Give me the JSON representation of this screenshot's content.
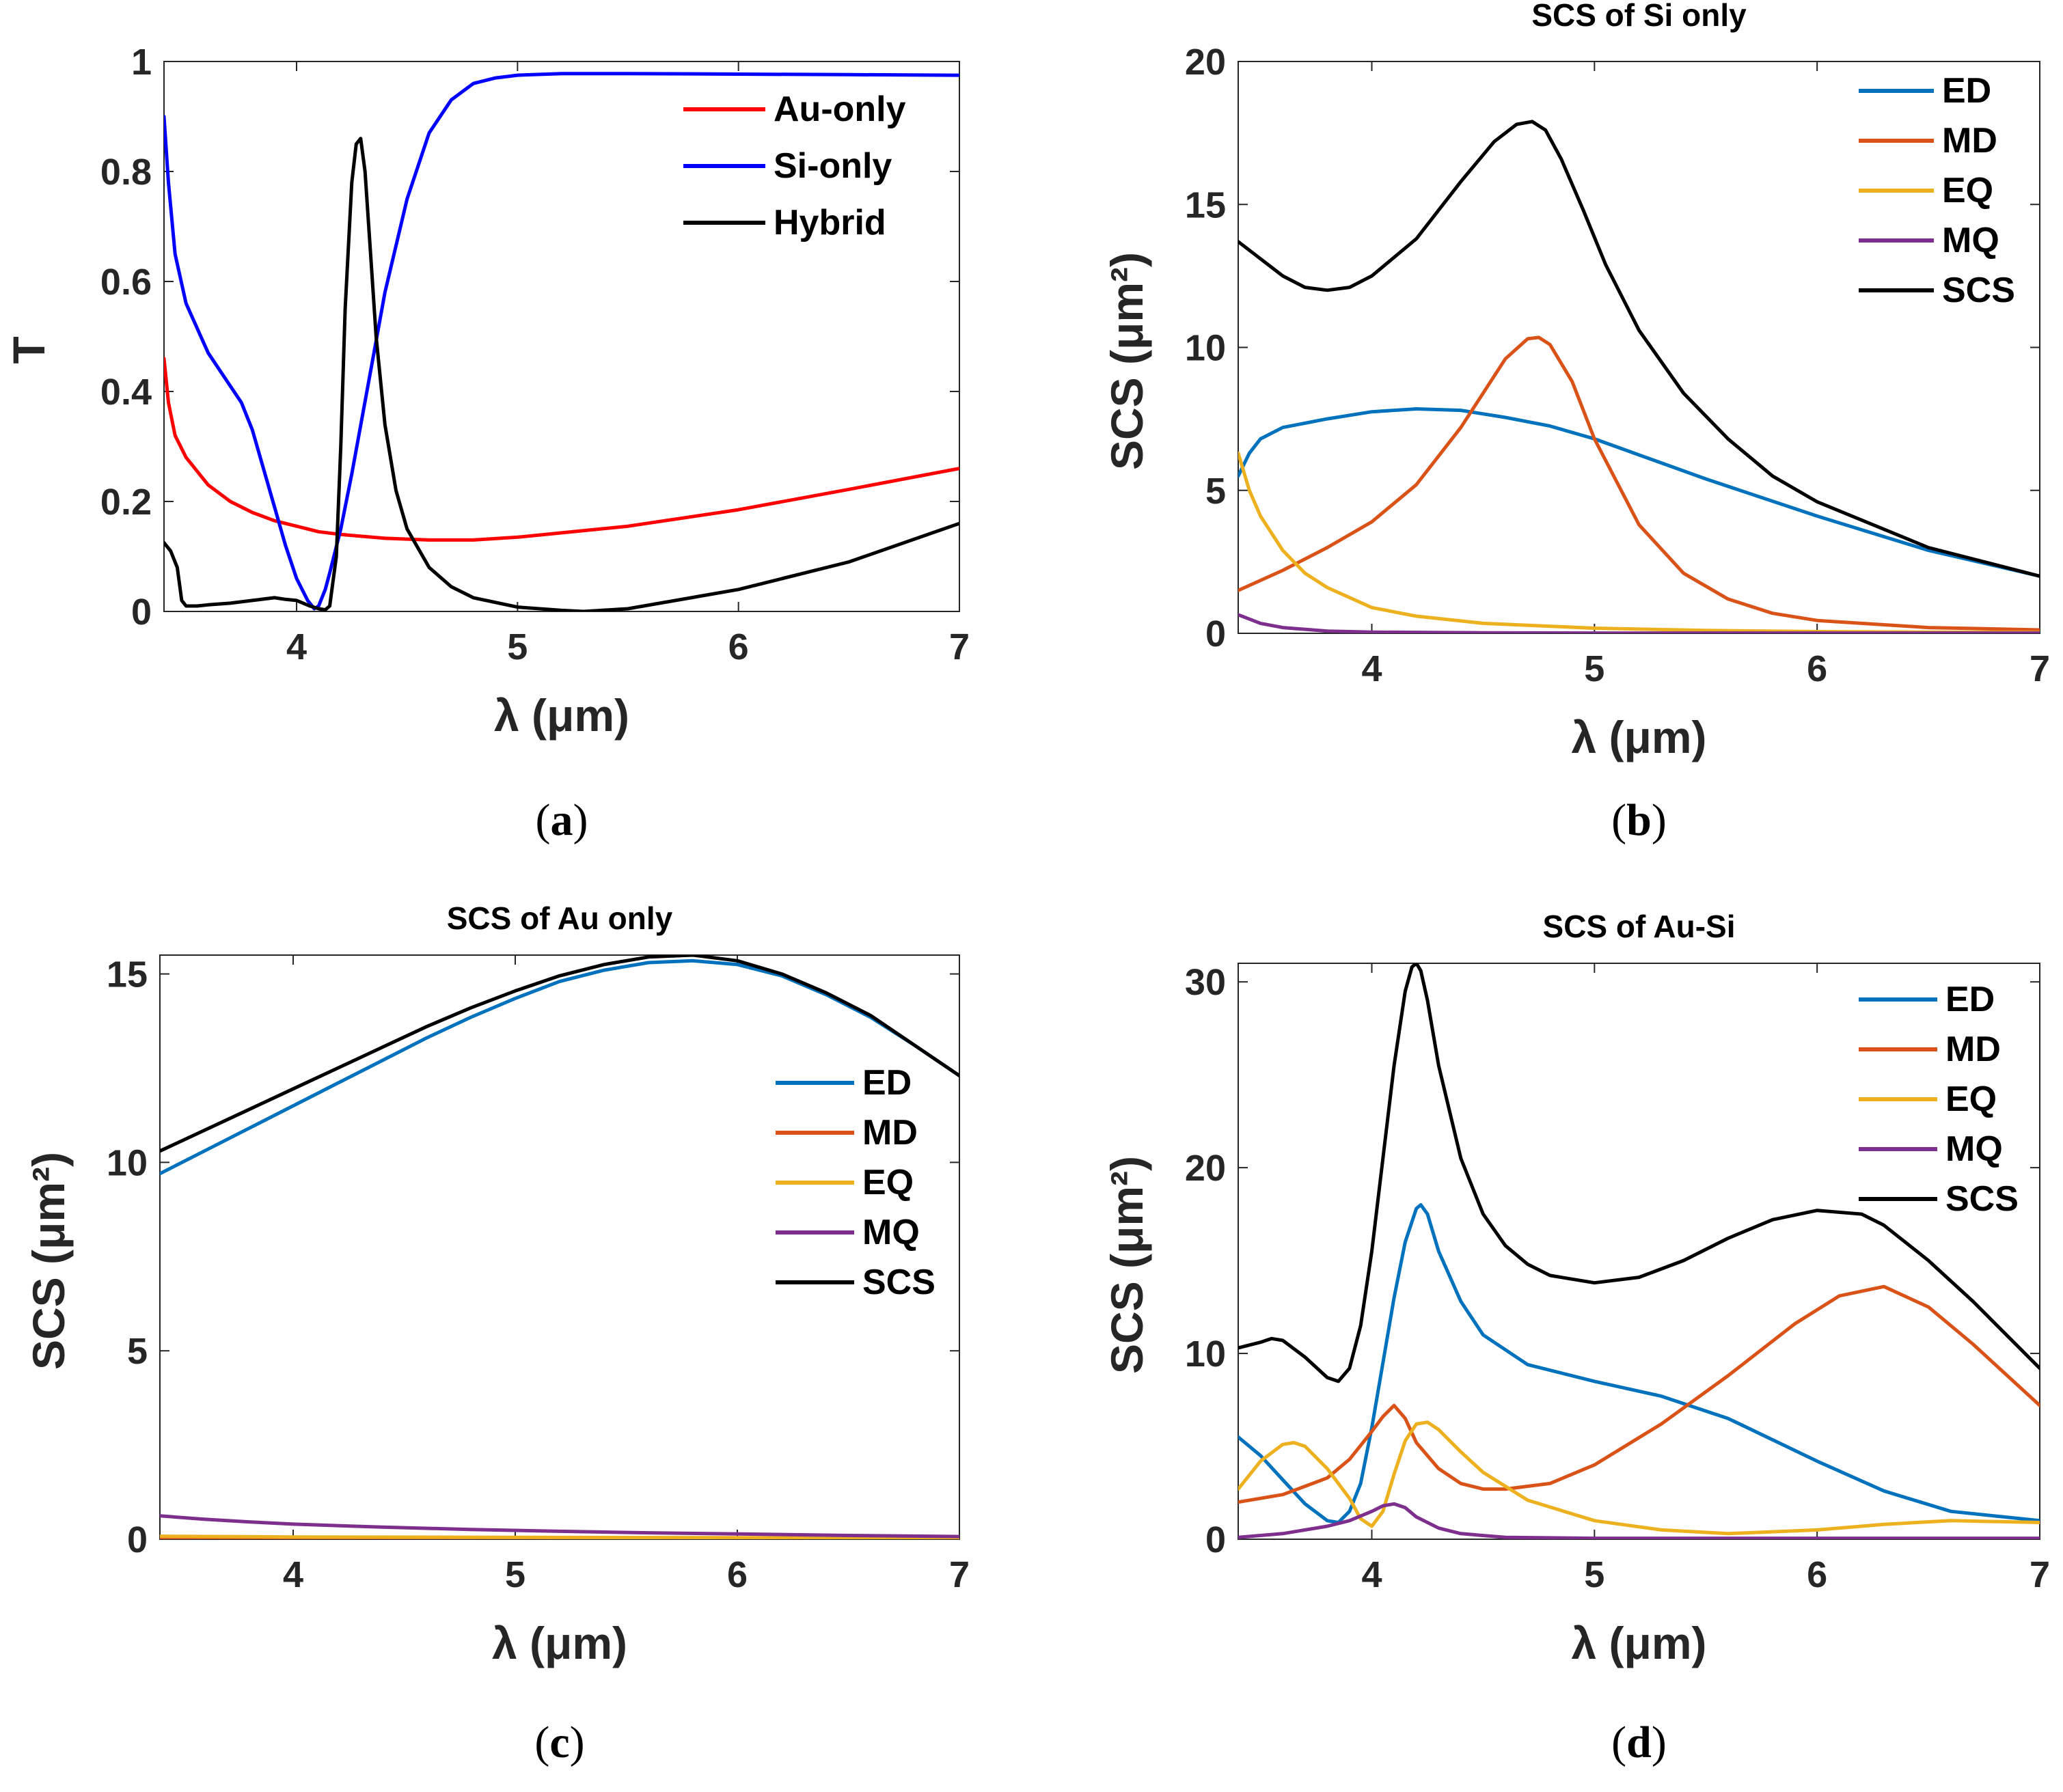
{
  "chart_data": [
    {
      "id": "a",
      "type": "line",
      "caption_label": "a",
      "title": "",
      "xlabel": "λ (μm)",
      "ylabel": "T",
      "xlim": [
        3.4,
        7
      ],
      "ylim": [
        0,
        1
      ],
      "xticks": [
        "4",
        "5",
        "6",
        "7"
      ],
      "xtick_values": [
        4,
        5,
        6,
        7
      ],
      "yticks": [
        "0",
        "0.2",
        "0.4",
        "0.6",
        "0.8",
        "1"
      ],
      "ytick_values": [
        0,
        0.2,
        0.4,
        0.6,
        0.8,
        1
      ],
      "legend_position": "top-right",
      "series": [
        {
          "name": "Au-only",
          "color": "#ff0000",
          "x": [
            3.4,
            3.42,
            3.45,
            3.5,
            3.6,
            3.7,
            3.8,
            3.9,
            4.0,
            4.1,
            4.2,
            4.4,
            4.6,
            4.8,
            5.0,
            5.2,
            5.5,
            6.0,
            6.5,
            7.0
          ],
          "y": [
            0.46,
            0.38,
            0.32,
            0.28,
            0.23,
            0.2,
            0.18,
            0.165,
            0.155,
            0.145,
            0.14,
            0.133,
            0.13,
            0.13,
            0.135,
            0.143,
            0.155,
            0.185,
            0.222,
            0.26
          ]
        },
        {
          "name": "Si-only",
          "color": "#0000ff",
          "x": [
            3.4,
            3.42,
            3.45,
            3.5,
            3.6,
            3.7,
            3.75,
            3.8,
            3.85,
            3.9,
            3.95,
            4.0,
            4.05,
            4.08,
            4.1,
            4.13,
            4.15,
            4.2,
            4.25,
            4.3,
            4.35,
            4.4,
            4.5,
            4.6,
            4.7,
            4.8,
            4.9,
            5.0,
            5.2,
            5.5,
            6.0,
            6.5,
            7.0
          ],
          "y": [
            0.9,
            0.78,
            0.65,
            0.56,
            0.47,
            0.41,
            0.38,
            0.33,
            0.26,
            0.19,
            0.12,
            0.06,
            0.02,
            0.005,
            0.01,
            0.04,
            0.07,
            0.15,
            0.25,
            0.36,
            0.47,
            0.58,
            0.75,
            0.87,
            0.93,
            0.96,
            0.97,
            0.975,
            0.978,
            0.978,
            0.977,
            0.976,
            0.975
          ]
        },
        {
          "name": "Hybrid",
          "color": "#000000",
          "x": [
            3.4,
            3.43,
            3.46,
            3.48,
            3.5,
            3.55,
            3.6,
            3.7,
            3.8,
            3.9,
            3.95,
            4.0,
            4.03,
            4.06,
            4.1,
            4.13,
            4.15,
            4.18,
            4.2,
            4.22,
            4.25,
            4.27,
            4.29,
            4.31,
            4.33,
            4.36,
            4.4,
            4.45,
            4.5,
            4.6,
            4.7,
            4.8,
            5.0,
            5.2,
            5.3,
            5.5,
            6.0,
            6.5,
            7.0
          ],
          "y": [
            0.125,
            0.11,
            0.08,
            0.02,
            0.01,
            0.01,
            0.012,
            0.015,
            0.02,
            0.025,
            0.022,
            0.02,
            0.015,
            0.01,
            0.005,
            0.003,
            0.01,
            0.1,
            0.3,
            0.55,
            0.78,
            0.85,
            0.86,
            0.8,
            0.68,
            0.5,
            0.34,
            0.22,
            0.15,
            0.08,
            0.045,
            0.025,
            0.008,
            0.002,
            0.0,
            0.005,
            0.04,
            0.09,
            0.16
          ]
        }
      ]
    },
    {
      "id": "b",
      "type": "line",
      "caption_label": "b",
      "title": "SCS of Si only",
      "xlabel": "λ (μm)",
      "ylabel": "SCS (μm²)",
      "xlim": [
        3.4,
        7
      ],
      "ylim": [
        0,
        20
      ],
      "xticks": [
        "4",
        "5",
        "6",
        "7"
      ],
      "xtick_values": [
        4,
        5,
        6,
        7
      ],
      "yticks": [
        "0",
        "5",
        "10",
        "15",
        "20"
      ],
      "ytick_values": [
        0,
        5,
        10,
        15,
        20
      ],
      "legend_position": "top-right",
      "series": [
        {
          "name": "ED",
          "color": "#0072bd",
          "x": [
            3.4,
            3.45,
            3.5,
            3.6,
            3.8,
            4.0,
            4.2,
            4.4,
            4.6,
            4.8,
            5.0,
            5.5,
            6.0,
            6.5,
            7.0
          ],
          "y": [
            5.5,
            6.3,
            6.8,
            7.2,
            7.5,
            7.75,
            7.85,
            7.8,
            7.55,
            7.25,
            6.8,
            5.4,
            4.1,
            2.9,
            2.0
          ]
        },
        {
          "name": "MD",
          "color": "#d95319",
          "x": [
            3.4,
            3.6,
            3.8,
            4.0,
            4.2,
            4.4,
            4.5,
            4.6,
            4.7,
            4.75,
            4.8,
            4.9,
            5.0,
            5.2,
            5.4,
            5.6,
            5.8,
            6.0,
            6.5,
            7.0
          ],
          "y": [
            1.5,
            2.2,
            3.0,
            3.9,
            5.2,
            7.2,
            8.4,
            9.6,
            10.3,
            10.35,
            10.1,
            8.8,
            6.8,
            3.8,
            2.1,
            1.2,
            0.7,
            0.45,
            0.2,
            0.12
          ]
        },
        {
          "name": "EQ",
          "color": "#edb120",
          "x": [
            3.4,
            3.45,
            3.5,
            3.6,
            3.7,
            3.8,
            4.0,
            4.2,
            4.5,
            5.0,
            5.5,
            6.0,
            6.5,
            7.0
          ],
          "y": [
            6.3,
            5.0,
            4.1,
            2.9,
            2.1,
            1.6,
            0.9,
            0.6,
            0.35,
            0.18,
            0.1,
            0.06,
            0.04,
            0.03
          ]
        },
        {
          "name": "MQ",
          "color": "#7e2f8e",
          "x": [
            3.4,
            3.5,
            3.6,
            3.8,
            4.0,
            4.5,
            5.0,
            6.0,
            7.0
          ],
          "y": [
            0.65,
            0.35,
            0.2,
            0.08,
            0.04,
            0.02,
            0.01,
            0.01,
            0.01
          ]
        },
        {
          "name": "SCS",
          "color": "#000000",
          "x": [
            3.4,
            3.5,
            3.6,
            3.7,
            3.8,
            3.9,
            4.0,
            4.2,
            4.4,
            4.55,
            4.65,
            4.72,
            4.78,
            4.85,
            4.95,
            5.05,
            5.2,
            5.4,
            5.6,
            5.8,
            6.0,
            6.5,
            7.0
          ],
          "y": [
            13.7,
            13.1,
            12.5,
            12.1,
            12.0,
            12.1,
            12.5,
            13.8,
            15.8,
            17.2,
            17.8,
            17.9,
            17.6,
            16.6,
            14.8,
            12.9,
            10.6,
            8.4,
            6.8,
            5.5,
            4.6,
            3.0,
            2.0
          ]
        }
      ]
    },
    {
      "id": "c",
      "type": "line",
      "caption_label": "c",
      "title": "SCS of Au only",
      "xlabel": "λ (μm)",
      "ylabel": "SCS (μm²)",
      "xlim": [
        3.4,
        7
      ],
      "ylim": [
        0,
        15.5
      ],
      "xticks": [
        "4",
        "5",
        "6",
        "7"
      ],
      "xtick_values": [
        4,
        5,
        6,
        7
      ],
      "yticks": [
        "0",
        "5",
        "10",
        "15"
      ],
      "ytick_values": [
        0,
        5,
        10,
        15
      ],
      "legend_position": "right",
      "series": [
        {
          "name": "ED",
          "color": "#0072bd",
          "x": [
            3.4,
            3.6,
            3.8,
            4.0,
            4.2,
            4.4,
            4.6,
            4.8,
            5.0,
            5.2,
            5.4,
            5.6,
            5.8,
            6.0,
            6.2,
            6.4,
            6.6,
            6.8,
            7.0
          ],
          "y": [
            9.7,
            10.3,
            10.9,
            11.5,
            12.1,
            12.7,
            13.3,
            13.85,
            14.35,
            14.8,
            15.1,
            15.3,
            15.35,
            15.25,
            14.95,
            14.45,
            13.85,
            13.1,
            12.3
          ]
        },
        {
          "name": "MD",
          "color": "#d95319",
          "x": [
            3.4,
            4.0,
            5.0,
            6.0,
            7.0
          ],
          "y": [
            0.03,
            0.03,
            0.03,
            0.03,
            0.03
          ]
        },
        {
          "name": "EQ",
          "color": "#edb120",
          "x": [
            3.4,
            4.0,
            5.0,
            6.0,
            7.0
          ],
          "y": [
            0.08,
            0.06,
            0.05,
            0.04,
            0.03
          ]
        },
        {
          "name": "MQ",
          "color": "#7e2f8e",
          "x": [
            3.4,
            3.6,
            3.8,
            4.0,
            4.4,
            4.8,
            5.2,
            5.6,
            6.0,
            6.5,
            7.0
          ],
          "y": [
            0.62,
            0.53,
            0.46,
            0.4,
            0.32,
            0.26,
            0.21,
            0.17,
            0.14,
            0.1,
            0.07
          ]
        },
        {
          "name": "SCS",
          "color": "#000000",
          "x": [
            3.4,
            3.6,
            3.8,
            4.0,
            4.2,
            4.4,
            4.6,
            4.8,
            5.0,
            5.2,
            5.4,
            5.6,
            5.8,
            6.0,
            6.2,
            6.4,
            6.6,
            6.8,
            7.0
          ],
          "y": [
            10.3,
            10.85,
            11.4,
            11.95,
            12.5,
            13.05,
            13.6,
            14.1,
            14.55,
            14.95,
            15.25,
            15.45,
            15.5,
            15.35,
            15.0,
            14.5,
            13.9,
            13.1,
            12.3
          ]
        }
      ]
    },
    {
      "id": "d",
      "type": "line",
      "caption_label": "d",
      "title": "SCS of Au-Si",
      "xlabel": "λ (μm)",
      "ylabel": "SCS (μm²)",
      "xlim": [
        3.4,
        7
      ],
      "ylim": [
        0,
        31
      ],
      "xticks": [
        "4",
        "5",
        "6",
        "7"
      ],
      "xtick_values": [
        4,
        5,
        6,
        7
      ],
      "yticks": [
        "0",
        "10",
        "20",
        "30"
      ],
      "ytick_values": [
        0,
        10,
        20,
        30
      ],
      "legend_position": "top-right",
      "series": [
        {
          "name": "ED",
          "color": "#0072bd",
          "x": [
            3.4,
            3.5,
            3.6,
            3.7,
            3.8,
            3.85,
            3.9,
            3.95,
            4.0,
            4.05,
            4.1,
            4.15,
            4.2,
            4.22,
            4.25,
            4.3,
            4.4,
            4.5,
            4.7,
            5.0,
            5.3,
            5.6,
            6.0,
            6.3,
            6.6,
            7.0
          ],
          "y": [
            5.5,
            4.5,
            3.2,
            1.9,
            1.0,
            0.9,
            1.5,
            3.0,
            6.0,
            9.5,
            13.0,
            16.0,
            17.8,
            18.0,
            17.5,
            15.5,
            12.8,
            11.0,
            9.4,
            8.5,
            7.7,
            6.5,
            4.2,
            2.6,
            1.5,
            1.0
          ]
        },
        {
          "name": "MD",
          "color": "#d95319",
          "x": [
            3.4,
            3.6,
            3.8,
            3.9,
            4.0,
            4.05,
            4.1,
            4.15,
            4.2,
            4.3,
            4.4,
            4.5,
            4.6,
            4.8,
            5.0,
            5.3,
            5.6,
            5.9,
            6.1,
            6.3,
            6.5,
            6.7,
            7.0
          ],
          "y": [
            2.0,
            2.4,
            3.3,
            4.3,
            5.8,
            6.6,
            7.2,
            6.5,
            5.2,
            3.8,
            3.0,
            2.7,
            2.7,
            3.0,
            4.0,
            6.2,
            8.8,
            11.6,
            13.1,
            13.6,
            12.5,
            10.5,
            7.2
          ]
        },
        {
          "name": "EQ",
          "color": "#edb120",
          "x": [
            3.4,
            3.5,
            3.6,
            3.65,
            3.7,
            3.8,
            3.9,
            3.95,
            4.0,
            4.05,
            4.1,
            4.15,
            4.2,
            4.25,
            4.3,
            4.4,
            4.5,
            4.7,
            5.0,
            5.3,
            5.6,
            6.0,
            6.3,
            6.6,
            7.0
          ],
          "y": [
            2.7,
            4.2,
            5.1,
            5.2,
            5.0,
            3.8,
            2.2,
            1.1,
            0.7,
            1.5,
            3.5,
            5.3,
            6.2,
            6.3,
            5.9,
            4.7,
            3.6,
            2.1,
            1.0,
            0.5,
            0.3,
            0.5,
            0.8,
            1.0,
            0.9
          ]
        },
        {
          "name": "MQ",
          "color": "#7e2f8e",
          "x": [
            3.4,
            3.6,
            3.8,
            3.9,
            4.0,
            4.05,
            4.1,
            4.15,
            4.2,
            4.3,
            4.4,
            4.6,
            5.0,
            6.0,
            7.0
          ],
          "y": [
            0.1,
            0.3,
            0.7,
            1.0,
            1.5,
            1.8,
            1.9,
            1.7,
            1.2,
            0.6,
            0.3,
            0.1,
            0.05,
            0.05,
            0.05
          ]
        },
        {
          "name": "SCS",
          "color": "#000000",
          "x": [
            3.4,
            3.5,
            3.55,
            3.6,
            3.7,
            3.8,
            3.85,
            3.9,
            3.95,
            4.0,
            4.05,
            4.1,
            4.15,
            4.18,
            4.2,
            4.22,
            4.25,
            4.3,
            4.4,
            4.5,
            4.6,
            4.7,
            4.8,
            5.0,
            5.2,
            5.4,
            5.6,
            5.8,
            6.0,
            6.2,
            6.3,
            6.5,
            6.7,
            7.0
          ],
          "y": [
            10.3,
            10.6,
            10.8,
            10.7,
            9.8,
            8.7,
            8.5,
            9.2,
            11.5,
            15.5,
            20.5,
            25.5,
            29.5,
            30.8,
            31.0,
            30.6,
            29.0,
            25.5,
            20.5,
            17.5,
            15.8,
            14.8,
            14.2,
            13.8,
            14.1,
            15.0,
            16.2,
            17.2,
            17.7,
            17.5,
            16.9,
            15.0,
            12.8,
            9.2
          ]
        }
      ]
    }
  ]
}
